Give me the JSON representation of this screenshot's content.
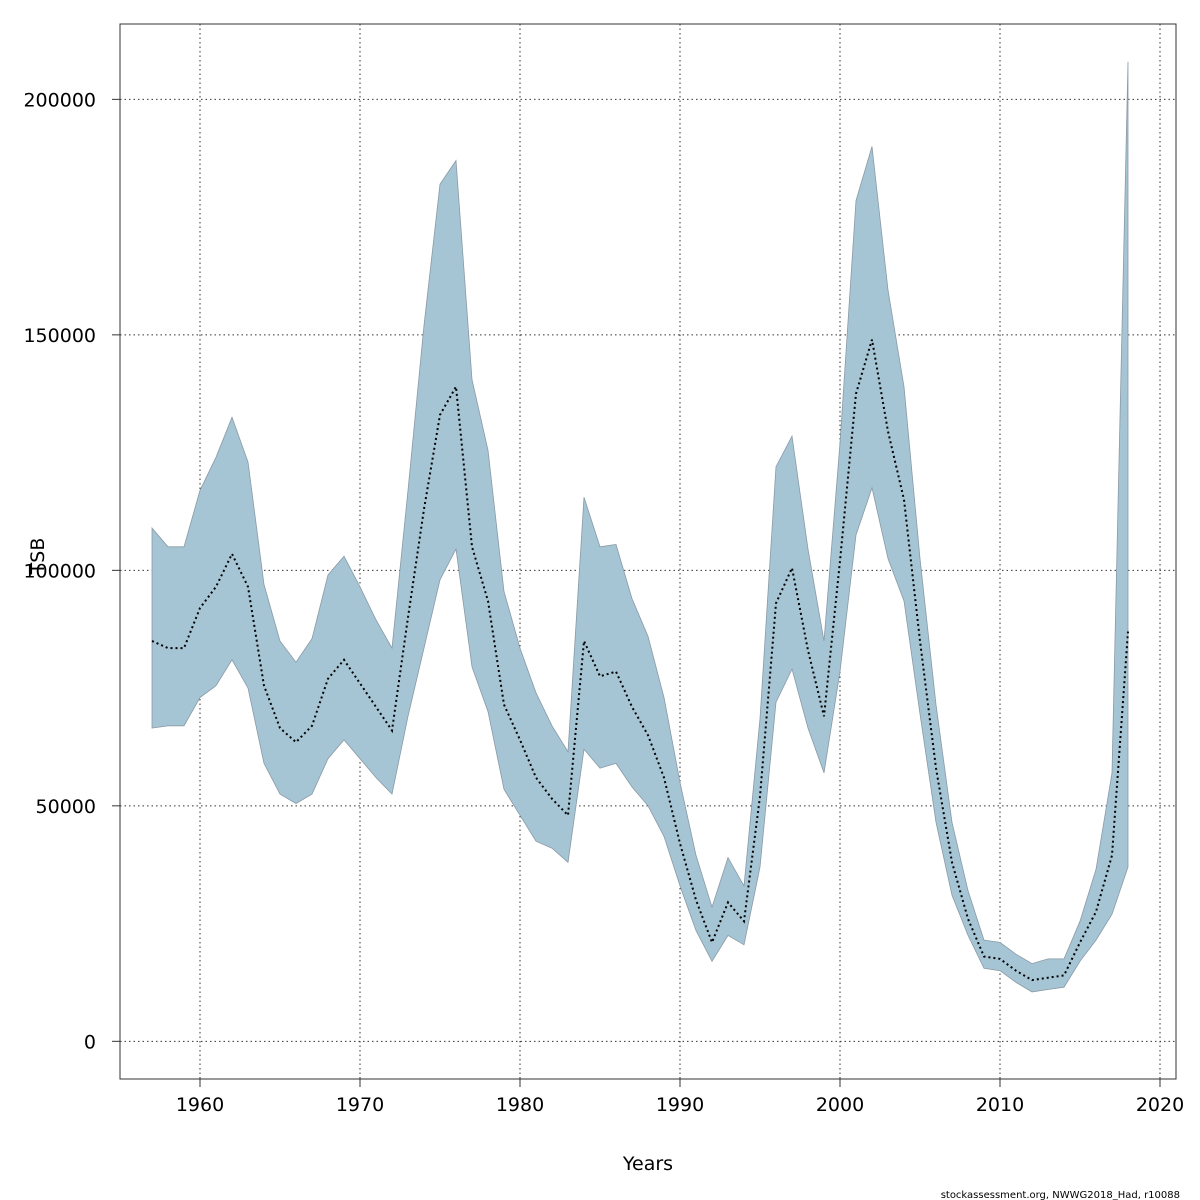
{
  "chart_data": {
    "type": "area",
    "title": "",
    "xlabel": "Years",
    "ylabel": "TSB",
    "xlim": [
      1955,
      2021
    ],
    "ylim": [
      -8000,
      216000
    ],
    "x_ticks": [
      1960,
      1970,
      1980,
      1990,
      2000,
      2010,
      2020
    ],
    "y_ticks": [
      0,
      50000,
      100000,
      150000,
      200000
    ],
    "x_tick_labels": [
      "1960",
      "1970",
      "1980",
      "1990",
      "2000",
      "2010",
      "2020"
    ],
    "y_tick_labels": [
      "0",
      "50000",
      "100000",
      "150000",
      "200000"
    ],
    "grid": true,
    "colors": {
      "band": "#a5c4d4",
      "band_edge": "#8a9aa6",
      "estimate": "#000000"
    },
    "series": [
      {
        "name": "TSB estimate",
        "style": "dotted line",
        "x": [
          1957,
          1958,
          1959,
          1960,
          1961,
          1962,
          1963,
          1964,
          1965,
          1966,
          1967,
          1968,
          1969,
          1970,
          1971,
          1972,
          1973,
          1974,
          1975,
          1976,
          1977,
          1978,
          1979,
          1980,
          1981,
          1982,
          1983,
          1984,
          1985,
          1986,
          1987,
          1988,
          1989,
          1990,
          1991,
          1992,
          1993,
          1994,
          1995,
          1996,
          1997,
          1998,
          1999,
          2000,
          2001,
          2002,
          2003,
          2004,
          2005,
          2006,
          2007,
          2008,
          2009,
          2010,
          2011,
          2012,
          2013,
          2014,
          2015,
          2016,
          2017,
          2018
        ],
        "values": [
          85000,
          83500,
          83500,
          92000,
          96500,
          103500,
          96500,
          75500,
          66500,
          63500,
          67000,
          77000,
          81000,
          76000,
          71000,
          66000,
          90000,
          113000,
          133000,
          139000,
          105000,
          93500,
          71500,
          64000,
          56000,
          51500,
          48000,
          85000,
          77500,
          78500,
          71000,
          65000,
          56000,
          42000,
          30000,
          21000,
          29500,
          25500,
          52000,
          93000,
          100500,
          83000,
          69000,
          102000,
          137500,
          149000,
          129500,
          115000,
          85000,
          58000,
          38000,
          26000,
          18000,
          17500,
          15000,
          13000,
          13500,
          14000,
          21000,
          27500,
          39500,
          87000
        ]
      },
      {
        "name": "Upper confidence bound",
        "x": [
          1957,
          1958,
          1959,
          1960,
          1961,
          1962,
          1963,
          1964,
          1965,
          1966,
          1967,
          1968,
          1969,
          1970,
          1971,
          1972,
          1973,
          1974,
          1975,
          1976,
          1977,
          1978,
          1979,
          1980,
          1981,
          1982,
          1983,
          1984,
          1985,
          1986,
          1987,
          1988,
          1989,
          1990,
          1991,
          1992,
          1993,
          1994,
          1995,
          1996,
          1997,
          1998,
          1999,
          2000,
          2001,
          2002,
          2003,
          2004,
          2005,
          2006,
          2007,
          2008,
          2009,
          2010,
          2011,
          2012,
          2013,
          2014,
          2015,
          2016,
          2017,
          2018
        ],
        "values": [
          109000,
          105000,
          105000,
          117000,
          124000,
          132500,
          123000,
          97000,
          85000,
          80500,
          85500,
          99000,
          103000,
          96500,
          89500,
          83500,
          117000,
          152000,
          182000,
          187000,
          140500,
          125500,
          95500,
          83500,
          74000,
          67000,
          61500,
          115500,
          105000,
          105500,
          94000,
          86000,
          73000,
          55000,
          39500,
          28500,
          39000,
          33000,
          68500,
          122000,
          128500,
          104500,
          85000,
          127000,
          178500,
          190000,
          159500,
          139000,
          102500,
          71500,
          46500,
          32000,
          21500,
          21000,
          18500,
          16500,
          17500,
          17500,
          25500,
          36500,
          57000,
          208000
        ]
      },
      {
        "name": "Lower confidence bound",
        "x": [
          1957,
          1958,
          1959,
          1960,
          1961,
          1962,
          1963,
          1964,
          1965,
          1966,
          1967,
          1968,
          1969,
          1970,
          1971,
          1972,
          1973,
          1974,
          1975,
          1976,
          1977,
          1978,
          1979,
          1980,
          1981,
          1982,
          1983,
          1984,
          1985,
          1986,
          1987,
          1988,
          1989,
          1990,
          1991,
          1992,
          1993,
          1994,
          1995,
          1996,
          1997,
          1998,
          1999,
          2000,
          2001,
          2002,
          2003,
          2004,
          2005,
          2006,
          2007,
          2008,
          2009,
          2010,
          2011,
          2012,
          2013,
          2014,
          2015,
          2016,
          2017,
          2018
        ],
        "values": [
          66500,
          67000,
          67000,
          73000,
          75500,
          81000,
          75000,
          59000,
          52500,
          50500,
          52500,
          60000,
          64000,
          60000,
          56000,
          52500,
          69000,
          83500,
          98000,
          104500,
          79500,
          70000,
          53500,
          48000,
          42500,
          41000,
          38000,
          62000,
          58000,
          59000,
          54000,
          50000,
          43500,
          33000,
          23500,
          17000,
          22500,
          20500,
          37000,
          72000,
          79000,
          66500,
          57000,
          78500,
          107500,
          117500,
          102500,
          93500,
          69500,
          46500,
          31000,
          22500,
          15500,
          15000,
          12500,
          10500,
          11000,
          11500,
          17000,
          21500,
          27000,
          37000
        ]
      }
    ],
    "footer": "stockassessment.org, NWWG2018_Had, r10088"
  }
}
